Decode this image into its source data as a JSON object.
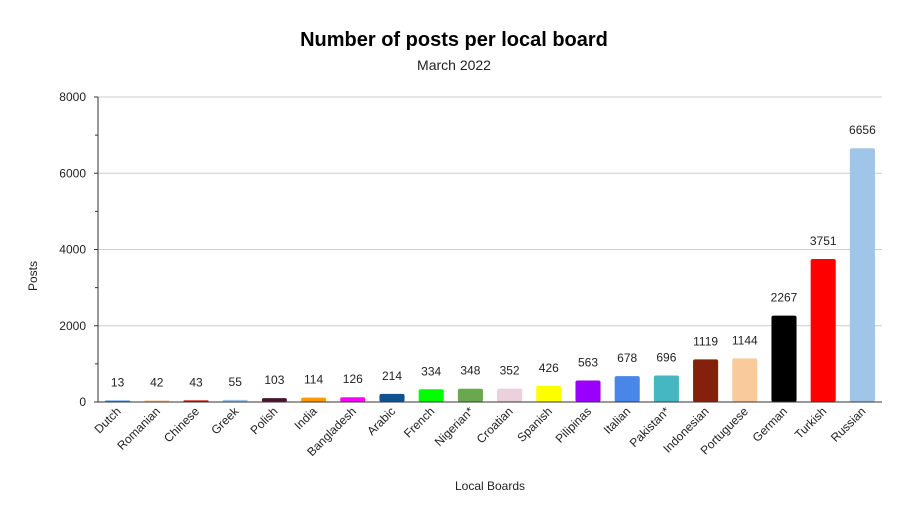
{
  "chart_data": {
    "type": "bar",
    "title": "Number of posts per local board",
    "subtitle": "March 2022",
    "xlabel": "Local Boards",
    "ylabel": "Posts",
    "ylim": [
      0,
      8000
    ],
    "yticks": [
      0,
      2000,
      4000,
      6000,
      8000
    ],
    "grid": true,
    "categories": [
      "Dutch",
      "Romanian",
      "Chinese",
      "Greek",
      "Polish",
      "India",
      "Bangladesh",
      "Arabic",
      "French",
      "Nigerian*",
      "Croatian",
      "Spanish",
      "Pilipinas",
      "Italian",
      "Pakistan*",
      "Indonesian",
      "Portuguese",
      "German",
      "Turkish",
      "Russian"
    ],
    "values": [
      13,
      42,
      43,
      55,
      103,
      114,
      126,
      214,
      334,
      348,
      352,
      426,
      563,
      678,
      696,
      1119,
      1144,
      2267,
      3751,
      6656
    ],
    "colors": [
      "#4a86e8",
      "#f9cb9c",
      "#cc0000",
      "#9fc5e8",
      "#4c1130",
      "#ff9900",
      "#ff00ff",
      "#0b5394",
      "#00ff00",
      "#6aa84f",
      "#ead1dc",
      "#ffff00",
      "#9900ff",
      "#4a86e8",
      "#45b7c2",
      "#85200c",
      "#f9cb9c",
      "#000000",
      "#ff0000",
      "#9fc5e8"
    ]
  }
}
